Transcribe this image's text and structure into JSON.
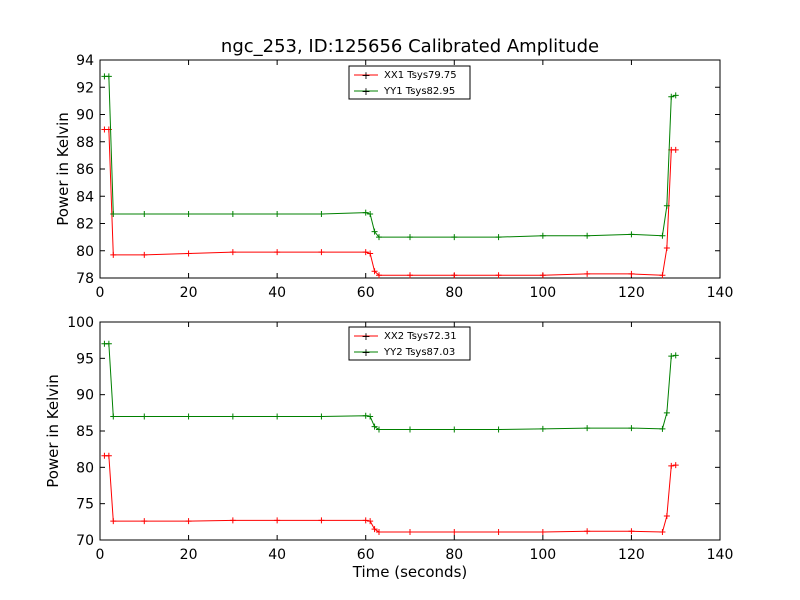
{
  "chart_data": {
    "title": "ngc_253, ID:125656 Calibrated Amplitude",
    "xlabel": "Time (seconds)",
    "panels": [
      {
        "type": "line",
        "ylabel": "Power in Kelvin",
        "xlim": [
          0,
          140
        ],
        "ylim": [
          78,
          94
        ],
        "xticks": [
          0,
          20,
          40,
          60,
          80,
          100,
          120,
          140
        ],
        "yticks": [
          78,
          80,
          82,
          84,
          86,
          88,
          90,
          92,
          94
        ],
        "legend": "top-center",
        "series": [
          {
            "name": "XX1 Tsys79.75",
            "color": "#ff0000",
            "points": [
              [
                1,
                88.9
              ],
              [
                2,
                88.9
              ],
              [
                3,
                79.7
              ],
              [
                10,
                79.7
              ],
              [
                20,
                79.8
              ],
              [
                30,
                79.9
              ],
              [
                40,
                79.9
              ],
              [
                50,
                79.9
              ],
              [
                60,
                79.9
              ],
              [
                61,
                79.8
              ],
              [
                62,
                78.5
              ],
              [
                63,
                78.2
              ],
              [
                70,
                78.2
              ],
              [
                80,
                78.2
              ],
              [
                90,
                78.2
              ],
              [
                100,
                78.2
              ],
              [
                110,
                78.3
              ],
              [
                120,
                78.3
              ],
              [
                127,
                78.2
              ],
              [
                128,
                80.2
              ],
              [
                129,
                87.4
              ],
              [
                130,
                87.4
              ]
            ]
          },
          {
            "name": "YY1 Tsys82.95",
            "color": "#008000",
            "points": [
              [
                1,
                92.8
              ],
              [
                2,
                92.8
              ],
              [
                3,
                82.7
              ],
              [
                10,
                82.7
              ],
              [
                20,
                82.7
              ],
              [
                30,
                82.7
              ],
              [
                40,
                82.7
              ],
              [
                50,
                82.7
              ],
              [
                60,
                82.8
              ],
              [
                61,
                82.7
              ],
              [
                62,
                81.4
              ],
              [
                63,
                81.0
              ],
              [
                70,
                81.0
              ],
              [
                80,
                81.0
              ],
              [
                90,
                81.0
              ],
              [
                100,
                81.1
              ],
              [
                110,
                81.1
              ],
              [
                120,
                81.2
              ],
              [
                127,
                81.1
              ],
              [
                128,
                83.3
              ],
              [
                129,
                91.3
              ],
              [
                130,
                91.4
              ]
            ]
          }
        ]
      },
      {
        "type": "line",
        "ylabel": "Power in Kelvin",
        "xlim": [
          0,
          140
        ],
        "ylim": [
          70,
          100
        ],
        "xticks": [
          0,
          20,
          40,
          60,
          80,
          100,
          120,
          140
        ],
        "yticks": [
          70,
          75,
          80,
          85,
          90,
          95,
          100
        ],
        "legend": "top-center",
        "series": [
          {
            "name": "XX2 Tsys72.31",
            "color": "#ff0000",
            "points": [
              [
                1,
                81.6
              ],
              [
                2,
                81.6
              ],
              [
                3,
                72.6
              ],
              [
                10,
                72.6
              ],
              [
                20,
                72.6
              ],
              [
                30,
                72.7
              ],
              [
                40,
                72.7
              ],
              [
                50,
                72.7
              ],
              [
                60,
                72.7
              ],
              [
                61,
                72.6
              ],
              [
                62,
                71.5
              ],
              [
                63,
                71.1
              ],
              [
                70,
                71.1
              ],
              [
                80,
                71.1
              ],
              [
                90,
                71.1
              ],
              [
                100,
                71.1
              ],
              [
                110,
                71.2
              ],
              [
                120,
                71.2
              ],
              [
                127,
                71.1
              ],
              [
                128,
                73.3
              ],
              [
                129,
                80.2
              ],
              [
                130,
                80.3
              ]
            ]
          },
          {
            "name": "YY2 Tsys87.03",
            "color": "#008000",
            "points": [
              [
                1,
                97.0
              ],
              [
                2,
                97.0
              ],
              [
                3,
                87.0
              ],
              [
                10,
                87.0
              ],
              [
                20,
                87.0
              ],
              [
                30,
                87.0
              ],
              [
                40,
                87.0
              ],
              [
                50,
                87.0
              ],
              [
                60,
                87.1
              ],
              [
                61,
                87.0
              ],
              [
                62,
                85.6
              ],
              [
                63,
                85.2
              ],
              [
                70,
                85.2
              ],
              [
                80,
                85.2
              ],
              [
                90,
                85.2
              ],
              [
                100,
                85.3
              ],
              [
                110,
                85.4
              ],
              [
                120,
                85.4
              ],
              [
                127,
                85.3
              ],
              [
                128,
                87.5
              ],
              [
                129,
                95.3
              ],
              [
                130,
                95.4
              ]
            ]
          }
        ]
      }
    ]
  }
}
